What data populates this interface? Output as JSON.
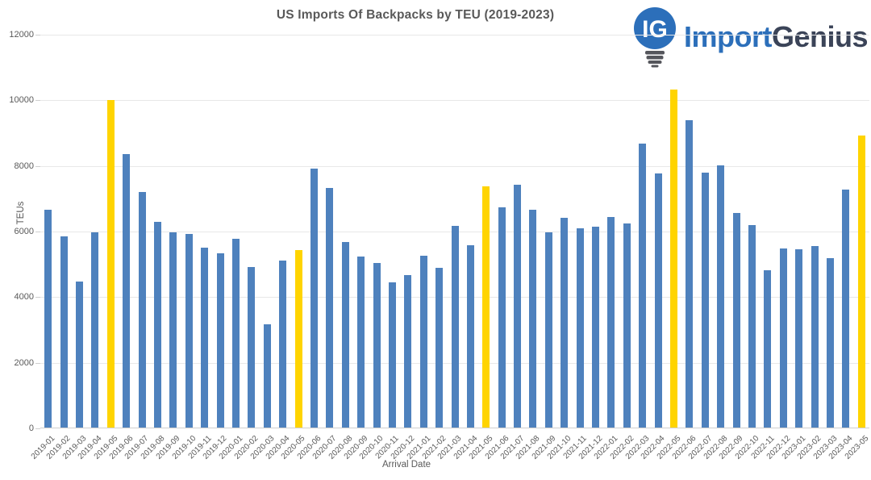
{
  "logo": {
    "icon_text": "IG",
    "part1": "Import",
    "part2": "Genius",
    "blue": "#2c6fba",
    "dark": "#3b4458",
    "base_gray": "#55565c"
  },
  "chart_data": {
    "type": "bar",
    "title": "US Imports Of Backpacks by TEU (2019-2023)",
    "xlabel": "Arrival Date",
    "ylabel": "TEUs",
    "ylim": [
      0,
      12000
    ],
    "yticks": [
      0,
      2000,
      4000,
      6000,
      8000,
      10000,
      12000
    ],
    "grid": true,
    "legend": false,
    "bar_color": "#4e81bd",
    "highlight_color": "#ffd400",
    "highlighted_categories": [
      "2019-05",
      "2020-05",
      "2021-05",
      "2022-05",
      "2023-05"
    ],
    "categories": [
      "2019-01",
      "2019-02",
      "2019-03",
      "2019-04",
      "2019-05",
      "2019-06",
      "2019-07",
      "2019-08",
      "2019-09",
      "2019-10",
      "2019-11",
      "2019-12",
      "2020-01",
      "2020-02",
      "2020-03",
      "2020-04",
      "2020-05",
      "2020-06",
      "2020-07",
      "2020-08",
      "2020-09",
      "2020-10",
      "2020-11",
      "2020-12",
      "2021-01",
      "2021-02",
      "2021-03",
      "2021-04",
      "2021-05",
      "2021-06",
      "2021-07",
      "2021-08",
      "2021-09",
      "2021-10",
      "2021-11",
      "2021-12",
      "2022-01",
      "2022-02",
      "2022-03",
      "2022-04",
      "2022-05",
      "2022-06",
      "2022-07",
      "2022-08",
      "2022-09",
      "2022-10",
      "2022-11",
      "2022-12",
      "2023-01",
      "2023-02",
      "2023-03",
      "2023-04",
      "2023-05"
    ],
    "values": [
      6670,
      5850,
      4480,
      5980,
      10020,
      8370,
      7200,
      6300,
      5970,
      5930,
      5500,
      5340,
      5770,
      4910,
      3180,
      5120,
      5430,
      7910,
      7340,
      5680,
      5230,
      5050,
      4450,
      4670,
      5270,
      4900,
      6180,
      5590,
      7370,
      6730,
      7430,
      6670,
      5980,
      6420,
      6090,
      6150,
      6450,
      6240,
      8670,
      7760,
      10340,
      9400,
      7800,
      8020,
      6570,
      6190,
      4820,
      5490,
      5470,
      5550,
      5200,
      7280,
      8930
    ]
  }
}
